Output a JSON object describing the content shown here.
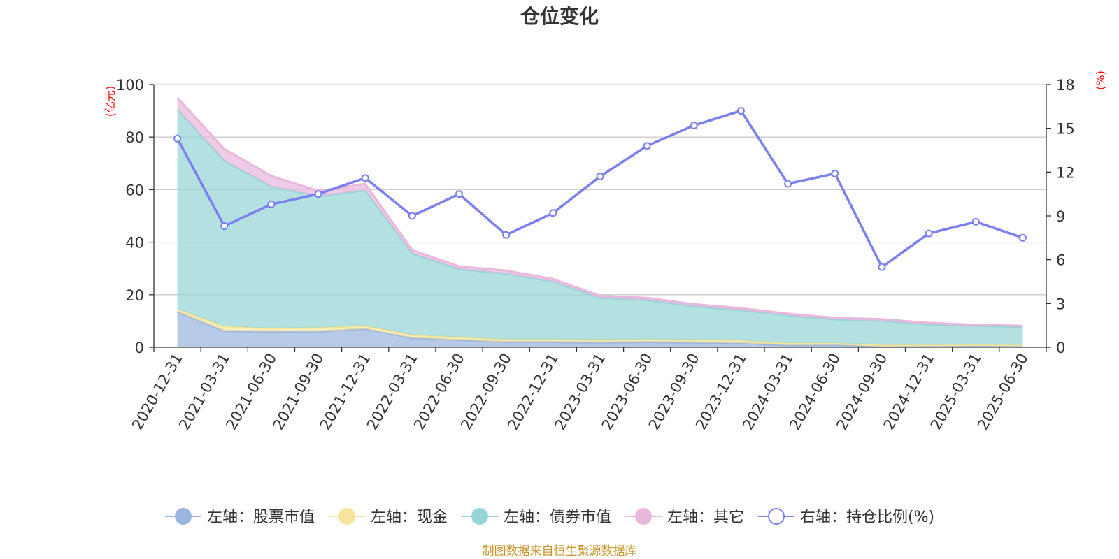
{
  "chart_data": {
    "type": "area",
    "title": "仓位变化",
    "left_axis_unit": "(亿元)",
    "right_axis_unit": "(%)",
    "ylim_left": [
      0,
      100
    ],
    "yticks_left": [
      0,
      20,
      40,
      60,
      80,
      100
    ],
    "ylim_right": [
      0,
      18
    ],
    "yticks_right": [
      0,
      3,
      6,
      9,
      12,
      15,
      18
    ],
    "grid": true,
    "legend_position": "bottom",
    "categories": [
      "2020-12-31",
      "2021-03-31",
      "2021-06-30",
      "2021-09-30",
      "2021-12-31",
      "2022-03-31",
      "2022-06-30",
      "2022-09-30",
      "2022-12-31",
      "2023-03-31",
      "2023-06-30",
      "2023-09-30",
      "2023-12-31",
      "2024-03-31",
      "2024-06-30",
      "2024-09-30",
      "2024-12-31",
      "2025-03-31",
      "2025-06-30"
    ],
    "series": [
      {
        "name": "左轴：股票市值",
        "axis": "left",
        "kind": "stacked-area",
        "color": "#9bb5df",
        "values": [
          13.5,
          6.2,
          6.0,
          6.0,
          7.0,
          3.5,
          2.8,
          2.0,
          2.0,
          1.8,
          2.0,
          1.8,
          1.6,
          0.8,
          0.9,
          0.3,
          0.4,
          0.5,
          0.4
        ]
      },
      {
        "name": "左轴：现金",
        "axis": "left",
        "kind": "stacked-area",
        "color": "#f7e49a",
        "values": [
          1.0,
          1.8,
          1.2,
          1.5,
          1.2,
          1.2,
          1.0,
          1.0,
          1.0,
          1.0,
          1.0,
          1.0,
          1.0,
          0.8,
          0.7,
          0.6,
          0.5,
          0.5,
          0.5
        ]
      },
      {
        "name": "左轴：债券市值",
        "axis": "left",
        "kind": "stacked-area",
        "color": "#95d5d6",
        "values": [
          76.0,
          63.0,
          54.0,
          50.0,
          51.5,
          31.0,
          26.0,
          25.0,
          22.0,
          16.0,
          15.0,
          12.8,
          11.5,
          10.6,
          9.0,
          9.2,
          7.8,
          7.2,
          6.9
        ]
      },
      {
        "name": "左轴：其它",
        "axis": "left",
        "kind": "stacked-area",
        "color": "#eab7dc",
        "values": [
          4.5,
          4.5,
          4.0,
          2.0,
          2.5,
          1.3,
          1.0,
          1.2,
          1.0,
          0.8,
          0.8,
          0.8,
          0.8,
          0.6,
          0.6,
          0.6,
          0.6,
          0.4,
          0.4
        ]
      },
      {
        "name": "右轴：持仓比例(%)",
        "axis": "right",
        "kind": "line",
        "color": "#7b7ff0",
        "values": [
          14.3,
          8.3,
          9.8,
          10.5,
          11.6,
          9.0,
          10.5,
          7.7,
          9.2,
          11.7,
          13.8,
          15.2,
          16.2,
          11.2,
          11.9,
          5.5,
          7.8,
          8.6,
          7.5
        ]
      }
    ]
  },
  "source_note": "制图数据来自恒生聚源数据库"
}
